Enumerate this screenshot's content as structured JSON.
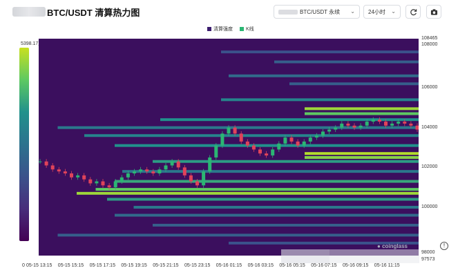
{
  "header": {
    "title": "BTC/USDT 清算热力图",
    "pair_select": {
      "value": "BTC/USDT 永续"
    },
    "time_select": {
      "value": "24小时"
    },
    "refresh_icon": "refresh-icon",
    "camera_icon": "camera-icon"
  },
  "legend": {
    "liquidation": "清算强度",
    "kline": "K线",
    "liquidation_color": "#3b1c6e",
    "kline_color": "#2bb673"
  },
  "colorbar": {
    "max_label": "5398.17万",
    "min_label": "0"
  },
  "watermark": "coinglass",
  "chart_data": {
    "type": "heatmap",
    "x_tick_labels": [
      "05-15 13:15",
      "05-15 15:15",
      "05-15 17:15",
      "05-15 19:15",
      "05-15 21:15",
      "05-15 23:15",
      "05-16 01:15",
      "05-16 03:15",
      "05-16 05:15",
      "05-16 07:15",
      "05-16 09:15",
      "05-16 11:15"
    ],
    "y_tick_labels": [
      "108465",
      "108000",
      "106000",
      "104000",
      "102000",
      "100000",
      "98000",
      "97573"
    ],
    "ylim": [
      97573,
      108465
    ],
    "colorscale_max": "5398.17万",
    "liquidation_levels": [
      {
        "price": 107800,
        "intensity": 0.25,
        "start": 0.48
      },
      {
        "price": 107300,
        "intensity": 0.3,
        "start": 0.62
      },
      {
        "price": 106600,
        "intensity": 0.35,
        "start": 0.5
      },
      {
        "price": 106200,
        "intensity": 0.3,
        "start": 0.66
      },
      {
        "price": 105400,
        "intensity": 0.45,
        "start": 0.48
      },
      {
        "price": 104950,
        "intensity": 0.9,
        "start": 0.7
      },
      {
        "price": 104700,
        "intensity": 0.75,
        "start": 0.7
      },
      {
        "price": 104400,
        "intensity": 0.5,
        "start": 0.32
      },
      {
        "price": 104000,
        "intensity": 0.4,
        "start": 0.05
      },
      {
        "price": 103600,
        "intensity": 0.45,
        "start": 0.12
      },
      {
        "price": 103100,
        "intensity": 0.5,
        "start": 0.2
      },
      {
        "price": 102700,
        "intensity": 0.95,
        "start": 0.7
      },
      {
        "price": 102500,
        "intensity": 0.85,
        "start": 0.7
      },
      {
        "price": 102300,
        "intensity": 0.55,
        "start": 0.3
      },
      {
        "price": 101800,
        "intensity": 0.4,
        "start": 0.22
      },
      {
        "price": 101300,
        "intensity": 0.6,
        "start": 0.2
      },
      {
        "price": 100900,
        "intensity": 0.75,
        "start": 0.15
      },
      {
        "price": 100700,
        "intensity": 0.9,
        "start": 0.1
      },
      {
        "price": 100400,
        "intensity": 0.55,
        "start": 0.18
      },
      {
        "price": 100000,
        "intensity": 0.4,
        "start": 0.25
      },
      {
        "price": 99600,
        "intensity": 0.35,
        "start": 0.2
      },
      {
        "price": 99100,
        "intensity": 0.3,
        "start": 0.3
      },
      {
        "price": 98600,
        "intensity": 0.3,
        "start": 0.05
      },
      {
        "price": 98200,
        "intensity": 0.25,
        "start": 0.5
      }
    ],
    "kline_close": [
      102300,
      102100,
      101900,
      101800,
      101700,
      101500,
      101600,
      101400,
      101200,
      101300,
      101100,
      101000,
      101300,
      101500,
      101700,
      101800,
      101900,
      101800,
      101700,
      101900,
      102100,
      102300,
      102000,
      101600,
      101300,
      101100,
      101800,
      102500,
      103100,
      103700,
      104000,
      103700,
      103300,
      103100,
      102900,
      102700,
      102600,
      102900,
      103200,
      103500,
      103300,
      103100,
      103300,
      103500,
      103600,
      103800,
      103900,
      104000,
      104200,
      104100,
      104000,
      104100,
      104300,
      104400,
      104300,
      104100,
      104200,
      104300,
      104200,
      104100,
      103900
    ]
  }
}
